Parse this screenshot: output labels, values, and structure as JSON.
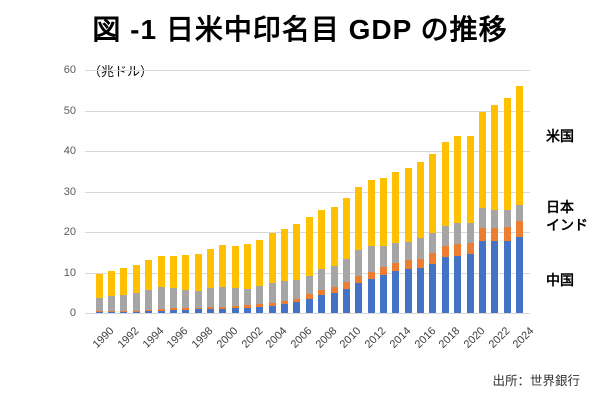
{
  "title": "図 -1 日米中印名目 GDP の推移",
  "unit_label": "（兆ドル）",
  "source": "出所：世界銀行",
  "colors": {
    "china_blue": "#4472C4",
    "india_orange": "#ED7D31",
    "japan_gray": "#A5A5A5",
    "us_yellow": "#FFC000",
    "gridline": "#D9D9D9"
  },
  "chart_data": {
    "type": "bar",
    "stacked": true,
    "title": "図 -1 日米中印名目 GDP の推移",
    "ylabel": "（兆ドル）",
    "ylim": [
      0,
      60
    ],
    "yticks": [
      0,
      10,
      20,
      30,
      40,
      50,
      60
    ],
    "grid": true,
    "x_tick_interval": 2,
    "x": [
      1990,
      1991,
      1992,
      1993,
      1994,
      1995,
      1996,
      1997,
      1998,
      1999,
      2000,
      2001,
      2002,
      2003,
      2004,
      2005,
      2006,
      2007,
      2008,
      2009,
      2010,
      2011,
      2012,
      2013,
      2014,
      2015,
      2016,
      2017,
      2018,
      2019,
      2020,
      2021,
      2022,
      2023,
      2024
    ],
    "series": [
      {
        "name": "中国",
        "key": "china",
        "color": "#4472C4",
        "values": [
          0.36,
          0.38,
          0.43,
          0.44,
          0.56,
          0.73,
          0.86,
          0.96,
          1.03,
          1.09,
          1.21,
          1.34,
          1.47,
          1.66,
          1.96,
          2.29,
          2.75,
          3.55,
          4.59,
          5.1,
          6.09,
          7.55,
          8.53,
          9.57,
          10.48,
          11.06,
          11.23,
          12.31,
          13.89,
          14.28,
          14.69,
          17.82,
          17.88,
          17.79,
          18.94
        ]
      },
      {
        "name": "インド",
        "key": "india",
        "color": "#ED7D31",
        "values": [
          0.32,
          0.27,
          0.29,
          0.28,
          0.33,
          0.36,
          0.4,
          0.42,
          0.43,
          0.46,
          0.47,
          0.49,
          0.52,
          0.61,
          0.71,
          0.82,
          0.94,
          1.22,
          1.2,
          1.34,
          1.68,
          1.82,
          1.83,
          1.86,
          2.04,
          2.1,
          2.29,
          2.65,
          2.7,
          2.84,
          2.67,
          3.17,
          3.35,
          3.55,
          3.91
        ]
      },
      {
        "name": "日本",
        "key": "japan",
        "color": "#A5A5A5",
        "values": [
          3.13,
          3.58,
          3.91,
          4.45,
          4.91,
          5.55,
          4.92,
          4.49,
          4.1,
          4.64,
          4.97,
          4.37,
          4.18,
          4.52,
          4.89,
          4.83,
          4.6,
          4.58,
          5.11,
          5.29,
          5.76,
          6.23,
          6.27,
          5.21,
          4.9,
          4.44,
          5.0,
          4.93,
          5.04,
          5.12,
          5.06,
          5.03,
          4.26,
          4.21,
          4.03
        ]
      },
      {
        "name": "米国",
        "key": "usa",
        "color": "#FFC000",
        "values": [
          5.96,
          6.16,
          6.52,
          6.86,
          7.29,
          7.64,
          8.07,
          8.58,
          9.06,
          9.63,
          10.25,
          10.58,
          10.93,
          11.46,
          12.21,
          13.04,
          13.82,
          14.47,
          14.77,
          14.48,
          15.05,
          15.6,
          16.25,
          16.88,
          17.61,
          18.3,
          18.8,
          19.61,
          20.66,
          21.54,
          21.35,
          23.68,
          26.01,
          27.72,
          29.18
        ]
      }
    ],
    "annotations": [
      {
        "text": "米国",
        "series_key": "usa"
      },
      {
        "text": "日本",
        "series_key": "japan"
      },
      {
        "text": "インド",
        "series_key": "india"
      },
      {
        "text": "中国",
        "series_key": "china"
      }
    ],
    "legend_position": "right-annotations"
  }
}
